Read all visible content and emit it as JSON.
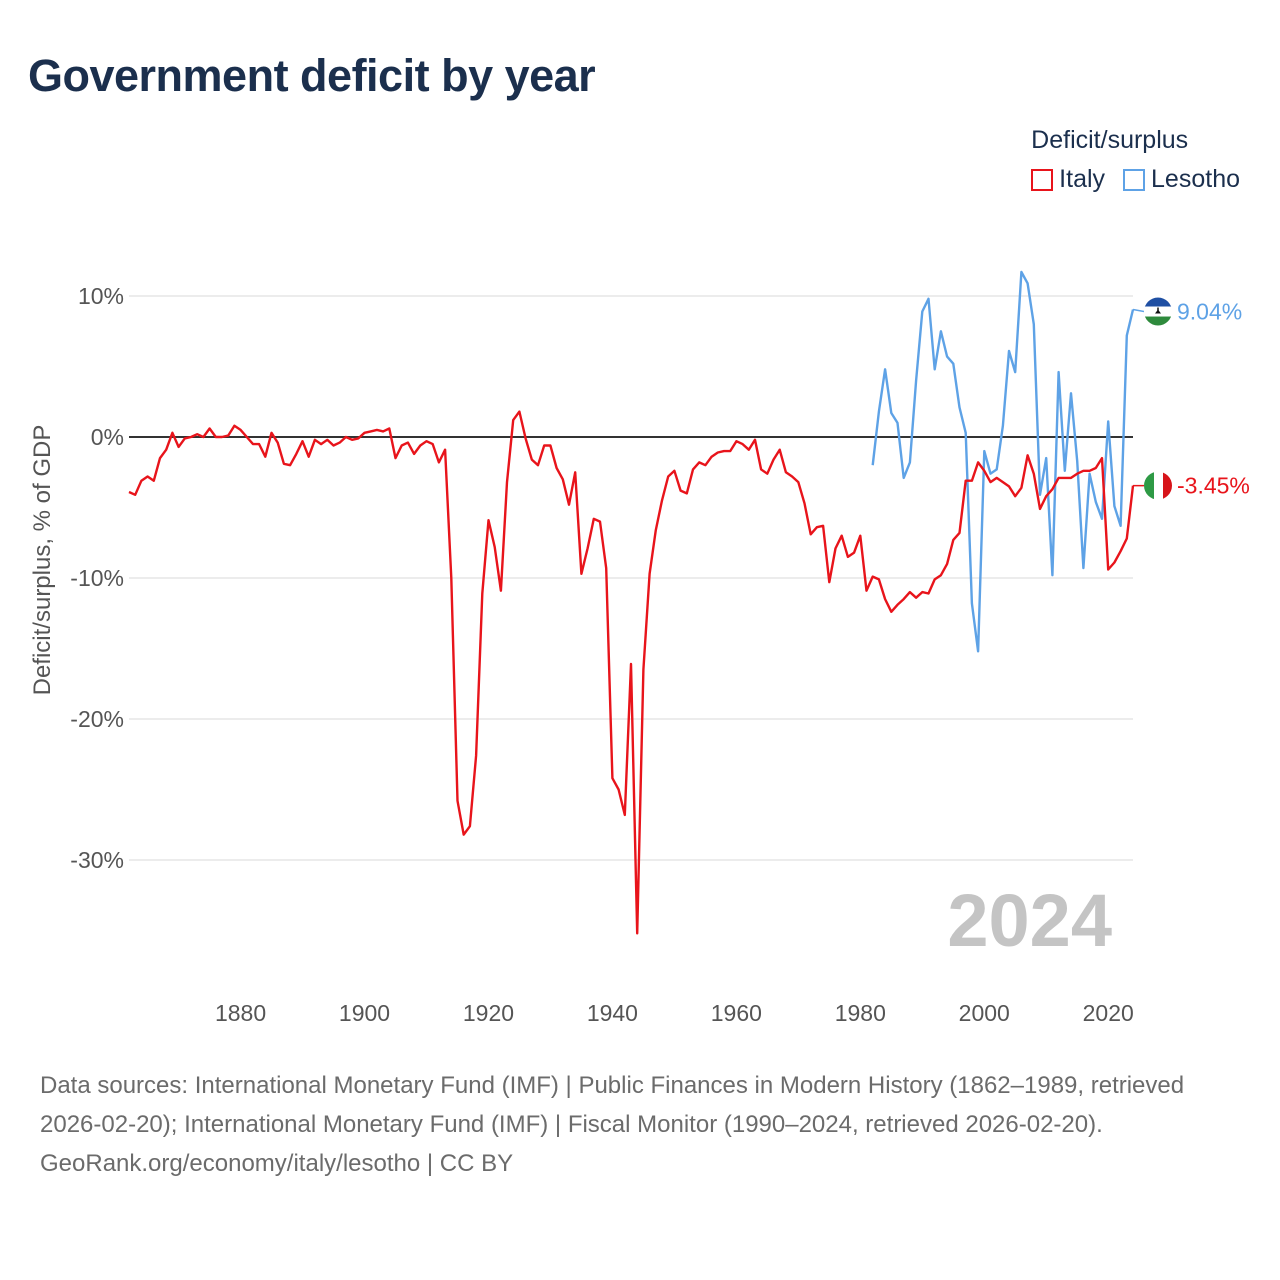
{
  "title": "Government deficit by year",
  "legend": {
    "title": "Deficit/surplus",
    "items": [
      {
        "label": "Italy",
        "color": "#e8141b"
      },
      {
        "label": "Lesotho",
        "color": "#5ea2e6"
      }
    ]
  },
  "watermark_year": "2024",
  "end_labels": {
    "italy": "-3.45%",
    "lesotho": "9.04%"
  },
  "footer": {
    "sources": "Data sources: International Monetary Fund (IMF) | Public Finances in Modern History (1862–1989, retrieved 2026-02-20); International Monetary Fund (IMF) | Fiscal Monitor (1990–2024, retrieved 2026-02-20).",
    "credit": "GeoRank.org/economy/italy/lesotho | CC BY"
  },
  "chart_data": {
    "type": "line",
    "title": "Government deficit by year",
    "xlabel": "",
    "ylabel": "Deficit/surplus, % of GDP",
    "xlim": [
      1862,
      2024
    ],
    "ylim": [
      -35,
      12
    ],
    "xticks": [
      1880,
      1900,
      1920,
      1940,
      1960,
      1980,
      2000,
      2020
    ],
    "xtick_labels": [
      "1880",
      "1900",
      "1920",
      "1940",
      "1960",
      "1980",
      "2000",
      "2020"
    ],
    "yticks": [
      10,
      0,
      -10,
      -20,
      -30
    ],
    "ytick_labels": [
      "10%",
      "0%",
      "-10%",
      "-20%",
      "-30%"
    ],
    "zero_line": true,
    "series": [
      {
        "name": "Italy",
        "color": "#e8141b",
        "points": [
          [
            1862,
            -3.9
          ],
          [
            1863,
            -4.1
          ],
          [
            1864,
            -3.1
          ],
          [
            1865,
            -2.8
          ],
          [
            1866,
            -3.1
          ],
          [
            1867,
            -1.5
          ],
          [
            1868,
            -0.9
          ],
          [
            1869,
            0.3
          ],
          [
            1870,
            -0.7
          ],
          [
            1871,
            -0.1
          ],
          [
            1872,
            0.0
          ],
          [
            1873,
            0.2
          ],
          [
            1874,
            0.0
          ],
          [
            1875,
            0.6
          ],
          [
            1876,
            0.0
          ],
          [
            1877,
            0.0
          ],
          [
            1878,
            0.1
          ],
          [
            1879,
            0.8
          ],
          [
            1880,
            0.5
          ],
          [
            1881,
            0.0
          ],
          [
            1882,
            -0.5
          ],
          [
            1883,
            -0.5
          ],
          [
            1884,
            -1.4
          ],
          [
            1885,
            0.3
          ],
          [
            1886,
            -0.4
          ],
          [
            1887,
            -1.9
          ],
          [
            1888,
            -2.0
          ],
          [
            1889,
            -1.2
          ],
          [
            1890,
            -0.3
          ],
          [
            1891,
            -1.4
          ],
          [
            1892,
            -0.2
          ],
          [
            1893,
            -0.5
          ],
          [
            1894,
            -0.2
          ],
          [
            1895,
            -0.6
          ],
          [
            1896,
            -0.4
          ],
          [
            1897,
            0.0
          ],
          [
            1898,
            -0.2
          ],
          [
            1899,
            -0.1
          ],
          [
            1900,
            0.3
          ],
          [
            1901,
            0.4
          ],
          [
            1902,
            0.5
          ],
          [
            1903,
            0.4
          ],
          [
            1904,
            0.6
          ],
          [
            1905,
            -1.5
          ],
          [
            1906,
            -0.6
          ],
          [
            1907,
            -0.4
          ],
          [
            1908,
            -1.2
          ],
          [
            1909,
            -0.6
          ],
          [
            1910,
            -0.3
          ],
          [
            1911,
            -0.5
          ],
          [
            1912,
            -1.8
          ],
          [
            1913,
            -0.9
          ],
          [
            1914,
            -10.0
          ],
          [
            1915,
            -25.8
          ],
          [
            1916,
            -28.2
          ],
          [
            1917,
            -27.6
          ],
          [
            1918,
            -22.6
          ],
          [
            1919,
            -11.1
          ],
          [
            1920,
            -5.9
          ],
          [
            1921,
            -7.8
          ],
          [
            1922,
            -10.9
          ],
          [
            1923,
            -3.2
          ],
          [
            1924,
            1.2
          ],
          [
            1925,
            1.8
          ],
          [
            1926,
            -0.1
          ],
          [
            1927,
            -1.6
          ],
          [
            1928,
            -2.0
          ],
          [
            1929,
            -0.6
          ],
          [
            1930,
            -0.6
          ],
          [
            1931,
            -2.2
          ],
          [
            1932,
            -3.0
          ],
          [
            1933,
            -4.8
          ],
          [
            1934,
            -2.5
          ],
          [
            1935,
            -9.7
          ],
          [
            1936,
            -7.9
          ],
          [
            1937,
            -5.8
          ],
          [
            1938,
            -6.0
          ],
          [
            1939,
            -9.3
          ],
          [
            1940,
            -24.2
          ],
          [
            1941,
            -25.0
          ],
          [
            1942,
            -26.8
          ],
          [
            1943,
            -16.1
          ],
          [
            1944,
            -35.2
          ],
          [
            1945,
            -16.5
          ],
          [
            1946,
            -9.7
          ],
          [
            1947,
            -6.6
          ],
          [
            1948,
            -4.5
          ],
          [
            1949,
            -2.8
          ],
          [
            1950,
            -2.4
          ],
          [
            1951,
            -3.8
          ],
          [
            1952,
            -4.0
          ],
          [
            1953,
            -2.3
          ],
          [
            1954,
            -1.8
          ],
          [
            1955,
            -2.0
          ],
          [
            1956,
            -1.4
          ],
          [
            1957,
            -1.1
          ],
          [
            1958,
            -1.0
          ],
          [
            1959,
            -1.0
          ],
          [
            1960,
            -0.3
          ],
          [
            1961,
            -0.5
          ],
          [
            1962,
            -0.9
          ],
          [
            1963,
            -0.2
          ],
          [
            1964,
            -2.3
          ],
          [
            1965,
            -2.6
          ],
          [
            1966,
            -1.6
          ],
          [
            1967,
            -0.9
          ],
          [
            1968,
            -2.5
          ],
          [
            1969,
            -2.8
          ],
          [
            1970,
            -3.2
          ],
          [
            1971,
            -4.7
          ],
          [
            1972,
            -6.9
          ],
          [
            1973,
            -6.4
          ],
          [
            1974,
            -6.3
          ],
          [
            1975,
            -10.3
          ],
          [
            1976,
            -7.9
          ],
          [
            1977,
            -7.0
          ],
          [
            1978,
            -8.5
          ],
          [
            1979,
            -8.2
          ],
          [
            1980,
            -7.0
          ],
          [
            1981,
            -10.9
          ],
          [
            1982,
            -9.9
          ],
          [
            1983,
            -10.1
          ],
          [
            1984,
            -11.5
          ],
          [
            1985,
            -12.4
          ],
          [
            1986,
            -11.9
          ],
          [
            1987,
            -11.5
          ],
          [
            1988,
            -11.0
          ],
          [
            1989,
            -11.4
          ],
          [
            1990,
            -11.0
          ],
          [
            1991,
            -11.1
          ],
          [
            1992,
            -10.1
          ],
          [
            1993,
            -9.8
          ],
          [
            1994,
            -9.0
          ],
          [
            1995,
            -7.3
          ],
          [
            1996,
            -6.8
          ],
          [
            1997,
            -3.1
          ],
          [
            1998,
            -3.1
          ],
          [
            1999,
            -1.8
          ],
          [
            2000,
            -2.4
          ],
          [
            2001,
            -3.2
          ],
          [
            2002,
            -2.9
          ],
          [
            2003,
            -3.2
          ],
          [
            2004,
            -3.5
          ],
          [
            2005,
            -4.2
          ],
          [
            2006,
            -3.6
          ],
          [
            2007,
            -1.3
          ],
          [
            2008,
            -2.6
          ],
          [
            2009,
            -5.1
          ],
          [
            2010,
            -4.2
          ],
          [
            2011,
            -3.7
          ],
          [
            2012,
            -2.9
          ],
          [
            2013,
            -2.9
          ],
          [
            2014,
            -2.9
          ],
          [
            2015,
            -2.6
          ],
          [
            2016,
            -2.4
          ],
          [
            2017,
            -2.4
          ],
          [
            2018,
            -2.2
          ],
          [
            2019,
            -1.5
          ],
          [
            2020,
            -9.4
          ],
          [
            2021,
            -8.9
          ],
          [
            2022,
            -8.1
          ],
          [
            2023,
            -7.2
          ],
          [
            2024,
            -3.45
          ]
        ]
      },
      {
        "name": "Lesotho",
        "color": "#5ea2e6",
        "points": [
          [
            1982,
            -2.0
          ],
          [
            1983,
            1.8
          ],
          [
            1984,
            4.8
          ],
          [
            1985,
            1.7
          ],
          [
            1986,
            1.0
          ],
          [
            1987,
            -2.9
          ],
          [
            1988,
            -1.8
          ],
          [
            1989,
            4.0
          ],
          [
            1990,
            8.9
          ],
          [
            1991,
            9.8
          ],
          [
            1992,
            4.8
          ],
          [
            1993,
            7.5
          ],
          [
            1994,
            5.7
          ],
          [
            1995,
            5.2
          ],
          [
            1996,
            2.1
          ],
          [
            1997,
            0.3
          ],
          [
            1998,
            -11.8
          ],
          [
            1999,
            -15.2
          ],
          [
            2000,
            -1.0
          ],
          [
            2001,
            -2.6
          ],
          [
            2002,
            -2.3
          ],
          [
            2003,
            0.8
          ],
          [
            2004,
            6.1
          ],
          [
            2005,
            4.6
          ],
          [
            2006,
            11.7
          ],
          [
            2007,
            10.9
          ],
          [
            2008,
            8.0
          ],
          [
            2009,
            -4.1
          ],
          [
            2010,
            -1.5
          ],
          [
            2011,
            -9.8
          ],
          [
            2012,
            4.6
          ],
          [
            2013,
            -2.4
          ],
          [
            2014,
            3.1
          ],
          [
            2015,
            -1.7
          ],
          [
            2016,
            -9.3
          ],
          [
            2017,
            -2.6
          ],
          [
            2018,
            -4.6
          ],
          [
            2019,
            -5.8
          ],
          [
            2020,
            1.1
          ],
          [
            2021,
            -4.9
          ],
          [
            2022,
            -6.3
          ],
          [
            2023,
            7.2
          ],
          [
            2024,
            9.04
          ]
        ]
      }
    ]
  }
}
